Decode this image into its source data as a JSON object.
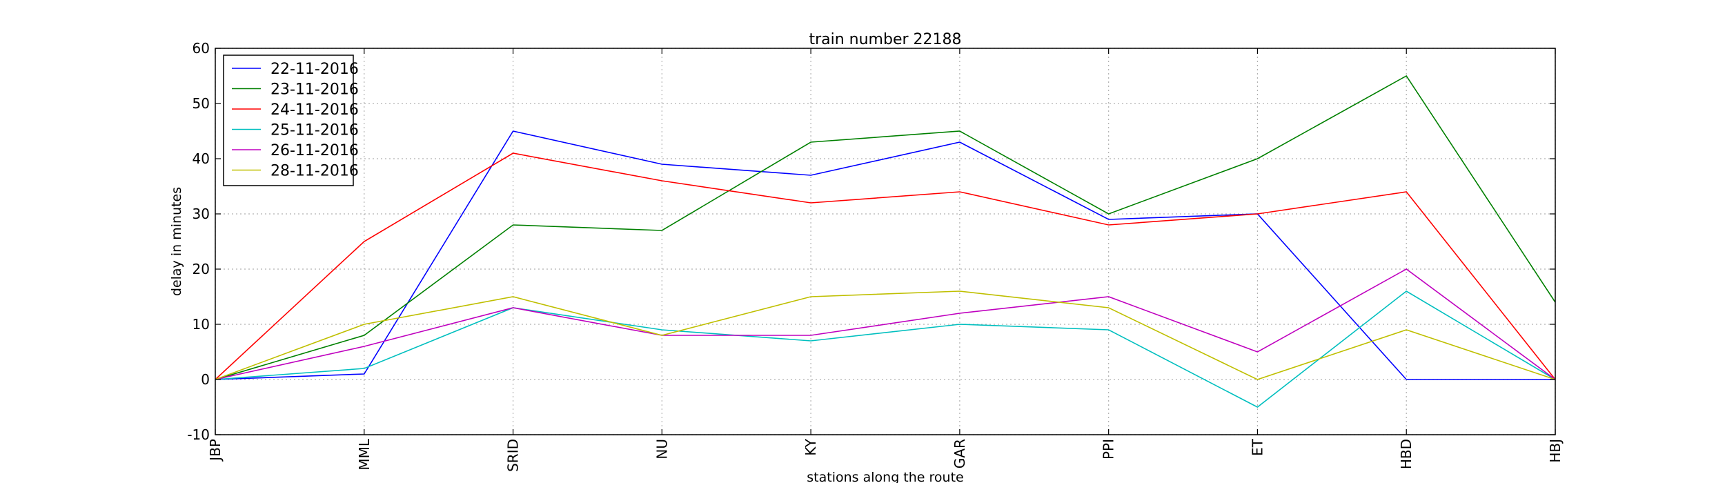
{
  "chart_data": {
    "type": "line",
    "title": "train number 22188",
    "xlabel": "stations along the route",
    "ylabel": "delay in minutes",
    "categories": [
      "JBP",
      "MML",
      "SRID",
      "NU",
      "KY",
      "GAR",
      "PPI",
      "ET",
      "HBD",
      "HBJ"
    ],
    "ylim": [
      -10,
      60
    ],
    "yticks": [
      -10,
      0,
      10,
      20,
      30,
      40,
      50,
      60
    ],
    "grid": true,
    "legend_position": "top-left",
    "series": [
      {
        "name": "22-11-2016",
        "color": "#0000ff",
        "values": [
          0,
          1,
          45,
          39,
          37,
          43,
          29,
          30,
          0,
          0
        ]
      },
      {
        "name": "23-11-2016",
        "color": "#008000",
        "values": [
          0,
          8,
          28,
          27,
          43,
          45,
          30,
          40,
          55,
          14
        ]
      },
      {
        "name": "24-11-2016",
        "color": "#ff0000",
        "values": [
          0,
          25,
          41,
          36,
          32,
          34,
          28,
          30,
          34,
          0
        ]
      },
      {
        "name": "25-11-2016",
        "color": "#00bfbf",
        "values": [
          0,
          2,
          13,
          9,
          7,
          10,
          9,
          -5,
          16,
          0
        ]
      },
      {
        "name": "26-11-2016",
        "color": "#bf00bf",
        "values": [
          0,
          6,
          13,
          8,
          8,
          12,
          15,
          5,
          20,
          0
        ]
      },
      {
        "name": "28-11-2016",
        "color": "#bfbf00",
        "values": [
          0,
          10,
          15,
          8,
          15,
          16,
          13,
          0,
          9,
          0
        ]
      }
    ]
  }
}
